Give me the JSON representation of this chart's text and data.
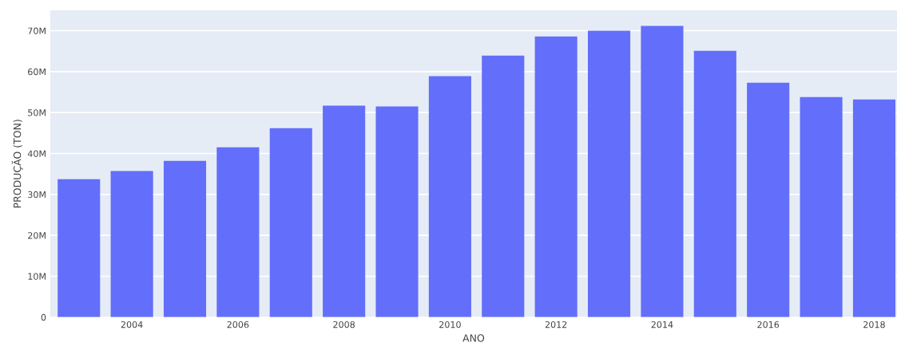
{
  "chart_data": {
    "type": "bar",
    "xlabel": "ANO",
    "ylabel": "PRODUÇÃO (TON)",
    "x": [
      2003,
      2004,
      2005,
      2006,
      2007,
      2008,
      2009,
      2010,
      2011,
      2012,
      2013,
      2014,
      2015,
      2016,
      2017,
      2018
    ],
    "values": [
      33700000,
      35700000,
      38200000,
      41500000,
      46200000,
      51700000,
      51500000,
      58900000,
      63900000,
      68600000,
      70000000,
      71200000,
      65100000,
      57300000,
      53800000,
      53200000
    ],
    "color": "#636efa",
    "xlim": [
      2002.46,
      2018.43
    ],
    "xticks": [
      2004,
      2006,
      2008,
      2010,
      2012,
      2014,
      2016,
      2018
    ],
    "ylim": [
      0,
      75000000
    ],
    "yticks": [
      {
        "value": 0,
        "label": "0"
      },
      {
        "value": 10000000,
        "label": "10M"
      },
      {
        "value": 20000000,
        "label": "20M"
      },
      {
        "value": 30000000,
        "label": "30M"
      },
      {
        "value": 40000000,
        "label": "40M"
      },
      {
        "value": 50000000,
        "label": "50M"
      },
      {
        "value": 60000000,
        "label": "60M"
      },
      {
        "value": 70000000,
        "label": "70M"
      }
    ],
    "grid": "y",
    "legend": false
  }
}
